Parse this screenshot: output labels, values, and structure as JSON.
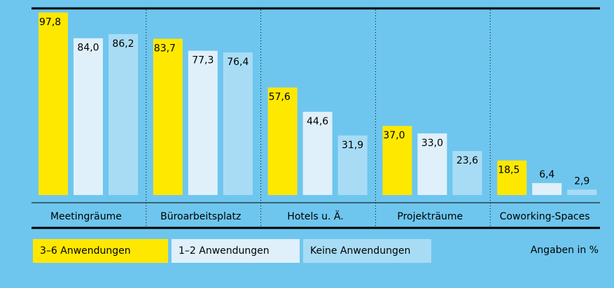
{
  "chart_data": {
    "type": "bar",
    "categories": [
      "Meetingräume",
      "Büroarbeitsplatz",
      "Hotels u. Ä.",
      "Projekträume",
      "Coworking-Spaces"
    ],
    "series": [
      {
        "name": "3–6 Anwendungen",
        "color": "#ffe800",
        "values": [
          97.8,
          83.7,
          57.6,
          37.0,
          18.5
        ],
        "value_labels": [
          "97,8",
          "83,7",
          "57,6",
          "37,0",
          "18,5"
        ]
      },
      {
        "name": "1–2 Anwendungen",
        "color": "#dff0fa",
        "values": [
          84.0,
          77.3,
          44.6,
          33.0,
          6.4
        ],
        "value_labels": [
          "84,0",
          "77,3",
          "44,6",
          "33,0",
          "6,4"
        ]
      },
      {
        "name": "Keine Anwendungen",
        "color": "#a8dcf5",
        "values": [
          86.2,
          76.4,
          31.9,
          23.6,
          2.9
        ],
        "value_labels": [
          "86,2",
          "76,4",
          "31,9",
          "23,6",
          "2,9"
        ]
      }
    ],
    "ylim": [
      0,
      100
    ],
    "note": "Angaben in %"
  }
}
